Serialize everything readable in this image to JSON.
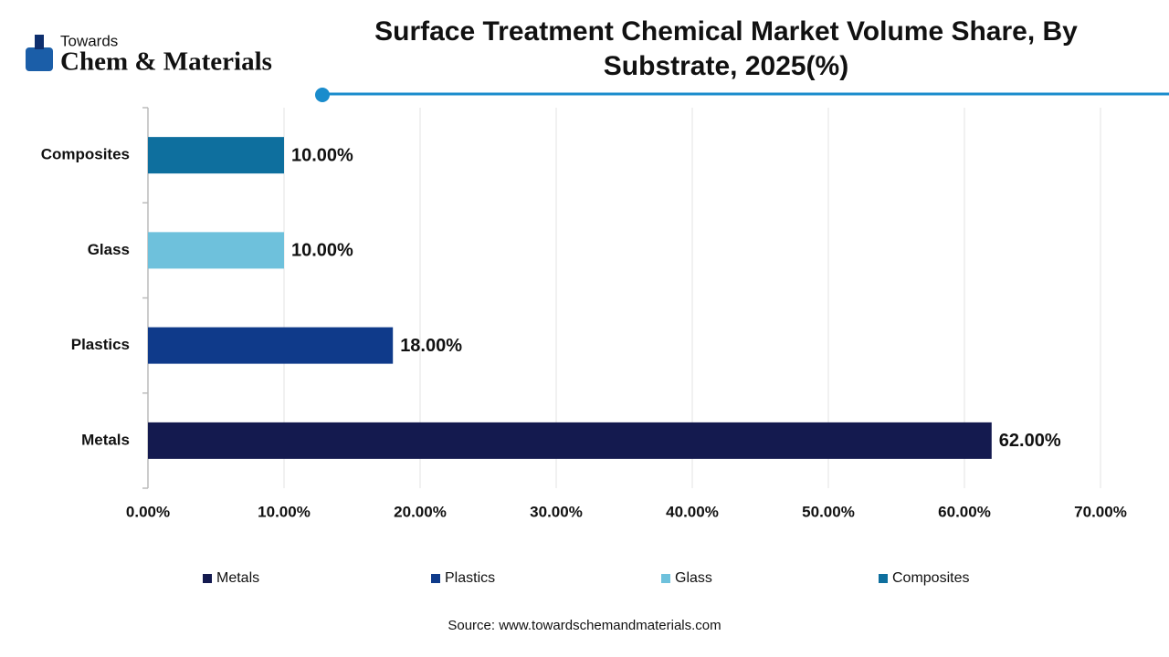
{
  "header": {
    "logo_top": "Towards",
    "logo_main": "Chem & Materials"
  },
  "chart_data": {
    "type": "bar",
    "orientation": "horizontal",
    "title": "Surface Treatment Chemical Market Volume Share, By Substrate, 2025(%)",
    "categories": [
      "Metals",
      "Plastics",
      "Glass",
      "Composites"
    ],
    "values": [
      62,
      18,
      10,
      10
    ],
    "value_labels": [
      "62.00%",
      "18.00%",
      "10.00%",
      "10.00%"
    ],
    "colors": [
      "#141a4f",
      "#0f3a8a",
      "#6ec1dc",
      "#0e6f9e"
    ],
    "xlim": [
      0,
      70
    ],
    "xticks": [
      {
        "value": 0,
        "label": "0.00%"
      },
      {
        "value": 10,
        "label": "10.00%"
      },
      {
        "value": 20,
        "label": "20.00%"
      },
      {
        "value": 30,
        "label": "30.00%"
      },
      {
        "value": 40,
        "label": "40.00%"
      },
      {
        "value": 50,
        "label": "50.00%"
      },
      {
        "value": 60,
        "label": "60.00%"
      },
      {
        "value": 70,
        "label": "70.00%"
      }
    ],
    "grid": true,
    "legend": "bottom",
    "source": "Source: www.towardschemandmaterials.com"
  }
}
